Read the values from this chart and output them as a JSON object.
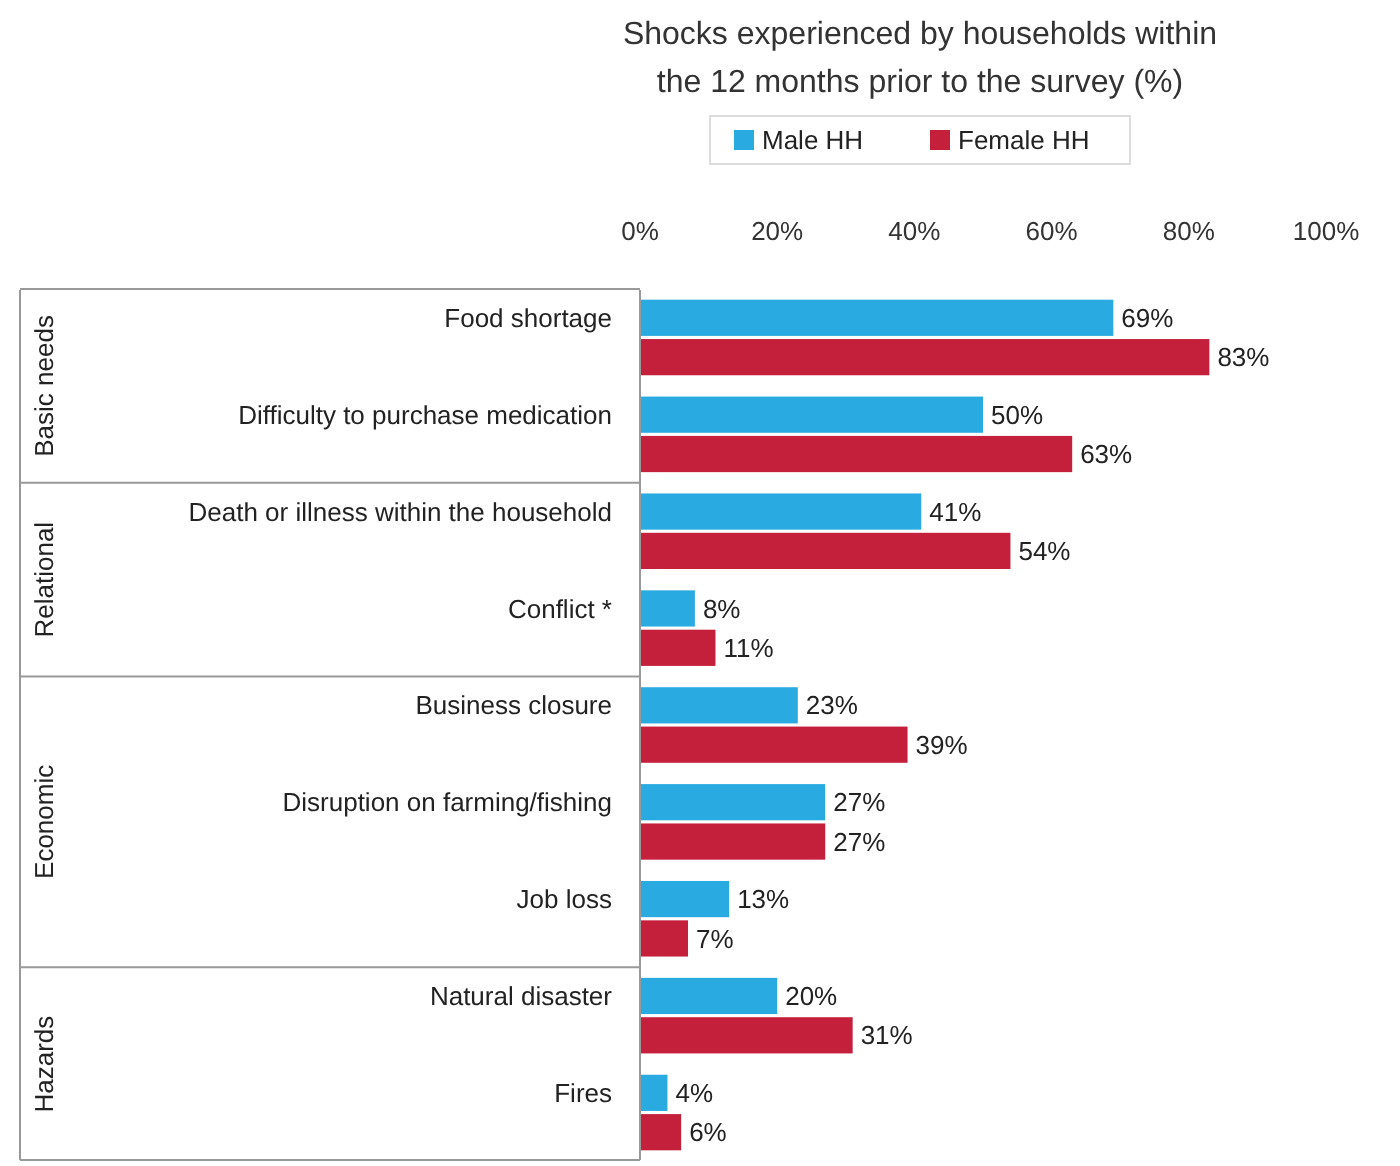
{
  "chart_data": {
    "type": "bar",
    "orientation": "horizontal",
    "title": "Shocks experienced by households within the 12 months prior to the survey (%)",
    "categories": [
      "Food shortage",
      "Difficulty to purchase medication",
      "Death or illness within the household",
      "Conflict *",
      "Business closure",
      "Disruption on farming/fishing",
      "Job loss",
      "Natural disaster",
      "Fires"
    ],
    "series": [
      {
        "name": "Male HH",
        "color": "#29abe2",
        "values": [
          69,
          50,
          41,
          8,
          23,
          27,
          13,
          20,
          4
        ],
        "value_labels": [
          "69%",
          "50%",
          "41%",
          "8%",
          "23%",
          "27%",
          "13%",
          "20%",
          "4%"
        ]
      },
      {
        "name": "Female HH",
        "color": "#c5203b",
        "values": [
          83,
          63,
          54,
          11,
          39,
          27,
          7,
          31,
          6
        ],
        "value_labels": [
          "83%",
          "63%",
          "54%",
          "11%",
          "39%",
          "27%",
          "7%",
          "31%",
          "6%"
        ]
      }
    ],
    "xlim": [
      0,
      100
    ],
    "xticks": [
      {
        "value": 0,
        "label": "0%"
      },
      {
        "value": 20,
        "label": "20%"
      },
      {
        "value": 40,
        "label": "40%"
      },
      {
        "value": 60,
        "label": "60%"
      },
      {
        "value": 80,
        "label": "80%"
      },
      {
        "value": 100,
        "label": "100%"
      }
    ],
    "annotations": [
      "Basic needs",
      "Relational",
      "Economic",
      "Hazards"
    ],
    "legend": "top",
    "grid": false
  }
}
